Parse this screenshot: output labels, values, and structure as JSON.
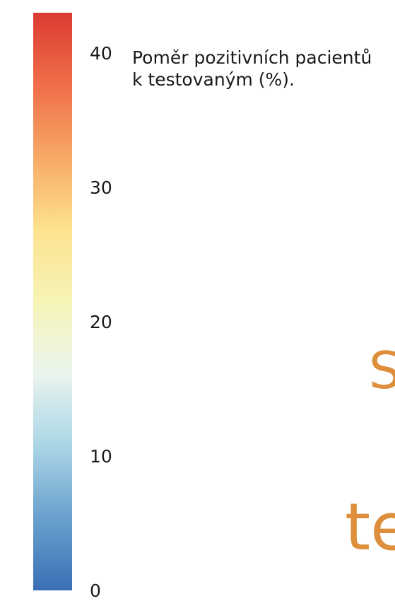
{
  "chart_data": {
    "type": "heatmap",
    "legend": {
      "title": "Poměr pozitivních pacientů\nk testovaným (%).",
      "min": 0,
      "max": 43,
      "ticks": [
        "0",
        "10",
        "20",
        "30",
        "40"
      ],
      "tick_values": [
        0,
        10,
        20,
        30,
        40
      ],
      "colors": [
        "#3b6fb6",
        "#6aa0cd",
        "#aad5e6",
        "#eaf4ee",
        "#f6f4b6",
        "#fde28f",
        "#f7a867",
        "#ef6e48",
        "#dc3b33"
      ]
    }
  },
  "fragments": {
    "text1": "S",
    "text2": "te"
  }
}
